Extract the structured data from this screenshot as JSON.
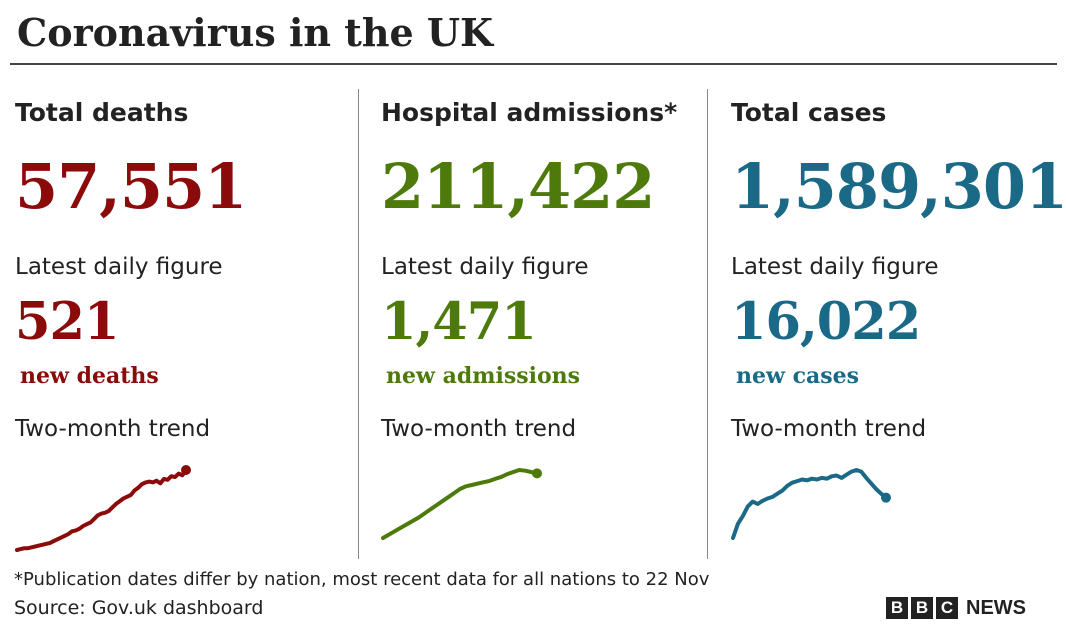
{
  "title": "Coronavirus in the UK",
  "footnote": "*Publication dates differ by nation, most recent data for all nations to 22 Nov",
  "source": "Source: Gov.uk dashboard",
  "logo": {
    "letters": [
      "B",
      "B",
      "C"
    ],
    "word": "NEWS"
  },
  "panels": [
    {
      "heading": "Total deaths",
      "total": "57,551",
      "daily_label": "Latest daily figure",
      "daily_value": "521",
      "daily_unit": "new deaths",
      "trend_label": "Two-month trend",
      "color": "#8b0a0a"
    },
    {
      "heading": "Hospital admissions*",
      "total": "211,422",
      "daily_label": "Latest daily figure",
      "daily_value": "1,471",
      "daily_unit": "new admissions",
      "trend_label": "Two-month trend",
      "color": "#4e7a0b"
    },
    {
      "heading": "Total cases",
      "total": "1,589,301",
      "daily_label": "Latest daily figure",
      "daily_value": "16,022",
      "daily_unit": "new cases",
      "trend_label": "Two-month trend",
      "color": "#1a6a87"
    }
  ],
  "chart_data": [
    {
      "type": "line",
      "title": "Two-month trend",
      "series": [
        {
          "values": [
            0,
            1,
            2,
            2,
            3,
            4,
            5,
            6,
            7,
            8,
            10,
            12,
            14,
            16,
            18,
            21,
            22,
            24,
            27,
            29,
            31,
            35,
            39,
            41,
            42,
            44,
            48,
            52,
            55,
            58,
            60,
            62,
            67,
            70,
            74,
            76,
            77,
            76,
            78,
            75,
            80,
            79,
            83,
            82,
            86,
            84,
            90
          ]
        }
      ]
    },
    {
      "type": "line",
      "title": "Two-month trend",
      "series": [
        {
          "values": [
            0,
            5,
            10,
            15,
            20,
            25,
            30,
            36,
            42,
            48,
            54,
            60,
            66,
            72,
            76,
            78,
            80,
            82,
            84,
            87,
            90,
            94,
            97,
            100,
            99,
            97,
            95
          ]
        }
      ]
    },
    {
      "type": "line",
      "title": "Two-month trend",
      "series": [
        {
          "values": [
            0,
            18,
            28,
            40,
            46,
            43,
            47,
            50,
            52,
            56,
            60,
            66,
            70,
            72,
            74,
            73,
            75,
            74,
            76,
            75,
            78,
            79,
            76,
            80,
            84,
            86,
            84,
            76,
            69,
            62,
            56,
            51
          ]
        }
      ]
    }
  ]
}
